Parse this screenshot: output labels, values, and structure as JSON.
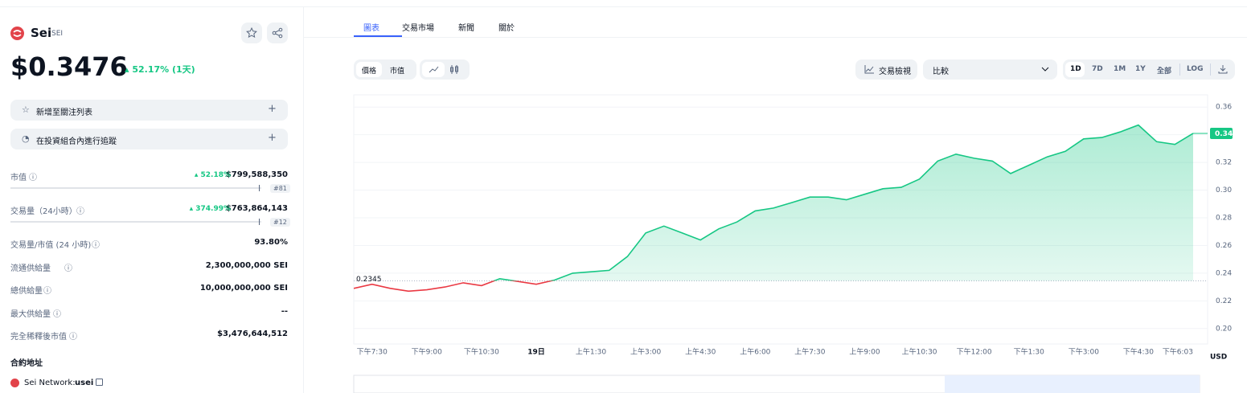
{
  "sidebar": {
    "name": "Sei",
    "symbol": "SEI",
    "price": "$0.3476",
    "change": "52.17% (1天)",
    "actions": [
      "新增至關注列表",
      "在投資組合內進行追蹤"
    ],
    "stats": [
      {
        "label": "市值",
        "change": "52.18%",
        "value": "$799,588,350",
        "rank": "#81"
      },
      {
        "label": "交易量（24小時）",
        "change": "374.99%",
        "value": "$763,864,143",
        "rank": "#12"
      },
      {
        "label": "交易量/市值 (24 小時)",
        "value": "93.80%"
      },
      {
        "label": "流通供給量",
        "value": "2,300,000,000 SEI"
      },
      {
        "label": "總供給量",
        "value": "10,000,000,000 SEI"
      },
      {
        "label": "最大供給量",
        "value": "--"
      },
      {
        "label": "完全稀釋後市值",
        "value": "$3,476,644,512"
      }
    ],
    "contract_title": "合約地址",
    "contract": {
      "network": "Sei Network:",
      "address": "usei"
    }
  },
  "tabs": [
    "圖表",
    "交易市場",
    "新聞",
    "關於"
  ],
  "toolbar": {
    "modes": [
      "價格",
      "市值"
    ],
    "trading_view": "交易檢視",
    "compare": "比較",
    "ranges": [
      "1D",
      "7D",
      "1M",
      "1Y",
      "全部",
      "LOG"
    ]
  },
  "chart_data": {
    "type": "line",
    "categories": [
      null,
      "下午7:30",
      null,
      null,
      "下午9:00",
      null,
      null,
      "下午10:30",
      null,
      null,
      "19日",
      null,
      null,
      "上午1:30",
      null,
      null,
      "上午3:00",
      null,
      null,
      "上午4:30",
      null,
      null,
      "上午6:00",
      null,
      null,
      "上午7:30",
      null,
      null,
      "上午9:00",
      null,
      null,
      "上午10:30",
      null,
      null,
      "下午12:00",
      null,
      null,
      "下午1:30",
      null,
      null,
      "下午3:00",
      null,
      null,
      "下午4:30",
      null,
      null,
      "下午6:03"
    ],
    "series": [
      {
        "color": "#16c784",
        "below_color": "#ea3943",
        "values": [
          0.229,
          0.232,
          0.229,
          0.227,
          0.228,
          0.23,
          0.233,
          0.231,
          0.236,
          0.234,
          0.232,
          0.235,
          0.24,
          0.241,
          0.242,
          0.252,
          0.269,
          0.274,
          0.269,
          0.264,
          0.272,
          0.277,
          0.285,
          0.287,
          0.291,
          0.295,
          0.295,
          0.293,
          0.297,
          0.301,
          0.302,
          0.308,
          0.321,
          0.326,
          0.323,
          0.321,
          0.312,
          0.318,
          0.324,
          0.328,
          0.337,
          0.338,
          0.342,
          0.347,
          0.335,
          0.333,
          0.341
        ]
      }
    ],
    "baseline": 0.2345,
    "last_label": "0.34",
    "ylim": [
      0.19,
      0.37
    ],
    "yticks": [
      {
        "value": 0.2,
        "label": "0.20"
      },
      0.22,
      0.24,
      0.26,
      0.28,
      {
        "value": 0.3,
        "label": "0.30"
      },
      0.32,
      0.34,
      0.36
    ],
    "currency": "USD",
    "grid": true
  }
}
